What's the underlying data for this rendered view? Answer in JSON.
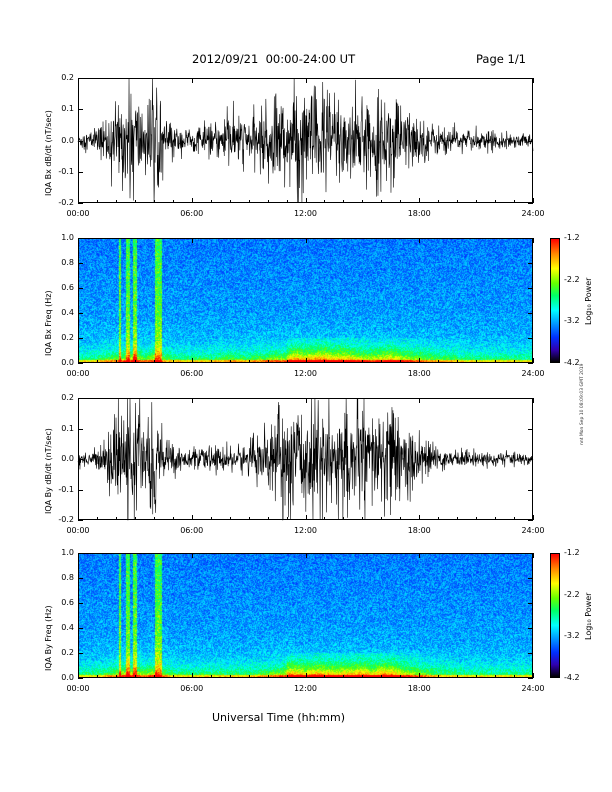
{
  "header": {
    "date_range": "2012/09/21  00:00-24:00 UT",
    "page": "Page 1/1"
  },
  "footer": {
    "xlabel": "Universal Time (hh:mm)",
    "side_stamp": "nnt Mon Sep 10 08:09:03 GMT 2019"
  },
  "chart_data": [
    {
      "type": "line",
      "ylabel": "IQA Bx dB/dt (nT/sec)",
      "x_ticks": [
        "00:00",
        "06:00",
        "12:00",
        "18:00",
        "24:00"
      ],
      "y_ticks": [
        "0.2",
        "0.1",
        "0.0",
        "-0.1",
        "-0.2"
      ],
      "xlim": [
        0,
        24
      ],
      "ylim": [
        -0.2,
        0.2
      ],
      "activity_envelope": {
        "hours": [
          0,
          1,
          1.5,
          2,
          2.5,
          3,
          3.5,
          4,
          4.5,
          5,
          6,
          7,
          8,
          9,
          10,
          10.5,
          11,
          11.5,
          12,
          12.5,
          13,
          13.5,
          14,
          14.5,
          15,
          15.5,
          16,
          16.5,
          17,
          18,
          19,
          20,
          21,
          22,
          23,
          24
        ],
        "amplitude": [
          0.03,
          0.04,
          0.09,
          0.12,
          0.16,
          0.2,
          0.1,
          0.2,
          0.09,
          0.05,
          0.04,
          0.05,
          0.09,
          0.07,
          0.12,
          0.15,
          0.14,
          0.2,
          0.16,
          0.2,
          0.2,
          0.16,
          0.18,
          0.15,
          0.12,
          0.12,
          0.14,
          0.16,
          0.13,
          0.08,
          0.05,
          0.04,
          0.03,
          0.03,
          0.025,
          0.02
        ]
      }
    },
    {
      "type": "heatmap",
      "ylabel": "IQA Bx Freq (Hz)",
      "x_ticks": [
        "00:00",
        "06:00",
        "12:00",
        "18:00",
        "24:00"
      ],
      "y_ticks": [
        "1.0",
        "0.8",
        "0.6",
        "0.4",
        "0.2",
        "0.0"
      ],
      "xlim": [
        0,
        24
      ],
      "ylim": [
        0,
        1.0
      ],
      "colorbar": {
        "label": "Log₁₀ Power",
        "ticks": [
          "-1.2",
          "-2.2",
          "-3.2",
          "-4.2"
        ],
        "range": [
          -4.2,
          -1.2
        ]
      }
    },
    {
      "type": "line",
      "ylabel": "IQA By dB/dt (nT/sec)",
      "x_ticks": [
        "00:00",
        "06:00",
        "12:00",
        "18:00",
        "24:00"
      ],
      "y_ticks": [
        "0.2",
        "0.1",
        "0.0",
        "-0.1",
        "-0.2"
      ],
      "xlim": [
        0,
        24
      ],
      "ylim": [
        -0.2,
        0.2
      ],
      "activity_envelope": {
        "hours": [
          0,
          1,
          1.5,
          2,
          2.5,
          3,
          3.5,
          4,
          4.5,
          5,
          6,
          7,
          8,
          9,
          10,
          10.5,
          11,
          11.5,
          12,
          12.5,
          13,
          13.5,
          14,
          14.5,
          15,
          15.5,
          16,
          16.5,
          17,
          18,
          19,
          20,
          21,
          22,
          23,
          24
        ],
        "amplitude": [
          0.025,
          0.03,
          0.08,
          0.13,
          0.2,
          0.2,
          0.12,
          0.2,
          0.1,
          0.05,
          0.03,
          0.04,
          0.05,
          0.05,
          0.1,
          0.14,
          0.2,
          0.18,
          0.15,
          0.2,
          0.18,
          0.15,
          0.17,
          0.18,
          0.2,
          0.15,
          0.2,
          0.2,
          0.14,
          0.08,
          0.04,
          0.03,
          0.025,
          0.025,
          0.02,
          0.02
        ]
      }
    },
    {
      "type": "heatmap",
      "ylabel": "IQA By Freq (Hz)",
      "x_ticks": [
        "00:00",
        "06:00",
        "12:00",
        "18:00",
        "24:00"
      ],
      "y_ticks": [
        "1.0",
        "0.8",
        "0.6",
        "0.4",
        "0.2",
        "0.0"
      ],
      "xlim": [
        0,
        24
      ],
      "ylim": [
        0,
        1.0
      ],
      "colorbar": {
        "label": "Log₁₀ Power",
        "ticks": [
          "-1.2",
          "-2.2",
          "-3.2",
          "-4.2"
        ],
        "range": [
          -4.2,
          -1.2
        ]
      }
    }
  ]
}
